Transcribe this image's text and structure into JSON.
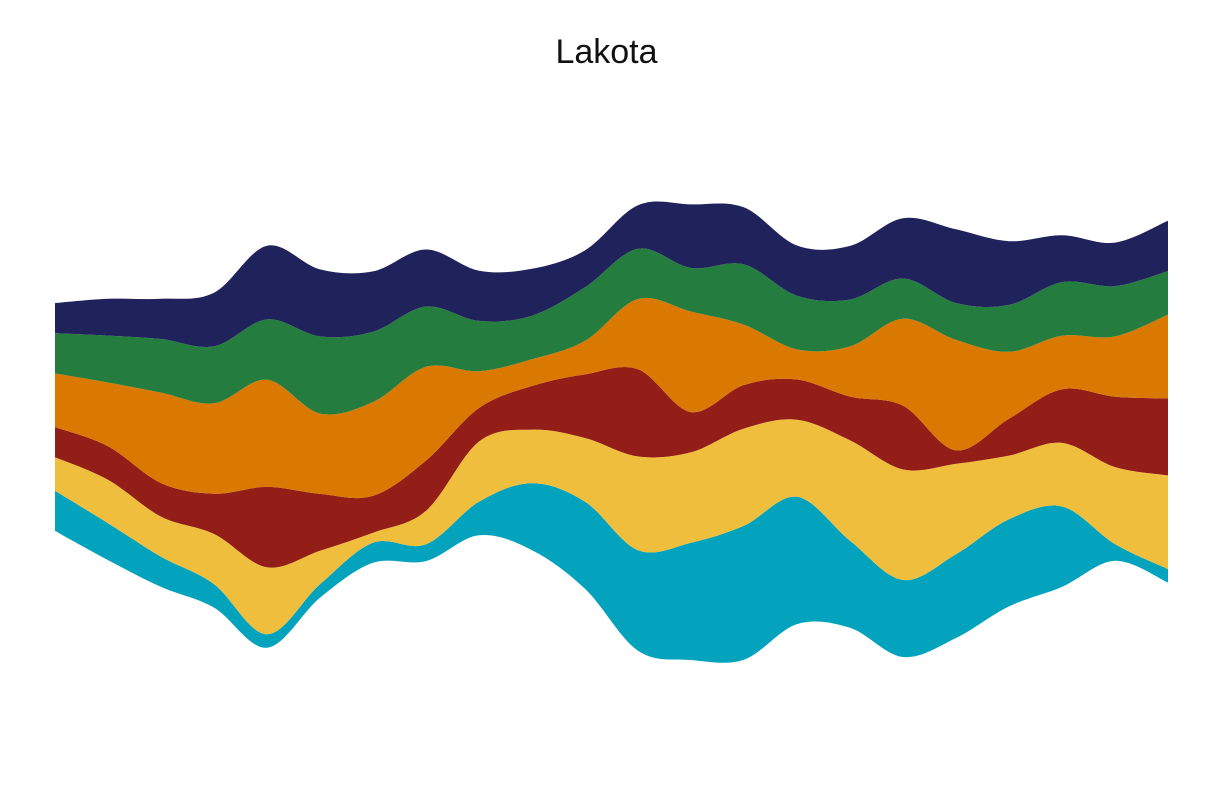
{
  "chart_data": {
    "type": "area",
    "subtype": "streamgraph",
    "title": "Lakota",
    "x": [
      0,
      1,
      2,
      3,
      4,
      5,
      6,
      7,
      8,
      9,
      10,
      11,
      12,
      13,
      14,
      15,
      16,
      17,
      18,
      19,
      20,
      21
    ],
    "series": [
      {
        "color": "#04A3BD",
        "values": [
          12,
          11,
          9,
          7,
          4,
          4,
          6,
          5,
          10,
          20,
          26,
          30,
          35,
          40,
          38,
          26,
          23,
          25,
          26,
          24,
          5,
          4
        ]
      },
      {
        "color": "#F0BE3D",
        "values": [
          10,
          13,
          12,
          15,
          20,
          10,
          3,
          10,
          18,
          16,
          19,
          28,
          27,
          29,
          23,
          30,
          33,
          27,
          19,
          19,
          23,
          28
        ]
      },
      {
        "color": "#931E18",
        "values": [
          9,
          10,
          10,
          12,
          24,
          17,
          11,
          15,
          10,
          13,
          19,
          26,
          12,
          13,
          12,
          13,
          19,
          4,
          11,
          16,
          21,
          23
        ]
      },
      {
        "color": "#DA7901",
        "values": [
          16,
          19,
          27,
          27,
          32,
          24,
          28,
          28,
          11,
          8,
          10,
          21,
          30,
          18,
          9,
          15,
          26,
          33,
          20,
          16,
          18,
          25
        ]
      },
      {
        "color": "#247D3F",
        "values": [
          12,
          14,
          16,
          17,
          18,
          23,
          21,
          18,
          15,
          13,
          16,
          15,
          13,
          18,
          16,
          14,
          12,
          11,
          14,
          16,
          15,
          13
        ]
      },
      {
        "color": "#20235B",
        "values": [
          9,
          11,
          12,
          16,
          22,
          20,
          18,
          17,
          15,
          14,
          11,
          13,
          19,
          17,
          15,
          16,
          18,
          22,
          19,
          14,
          13,
          15
        ]
      }
    ]
  }
}
